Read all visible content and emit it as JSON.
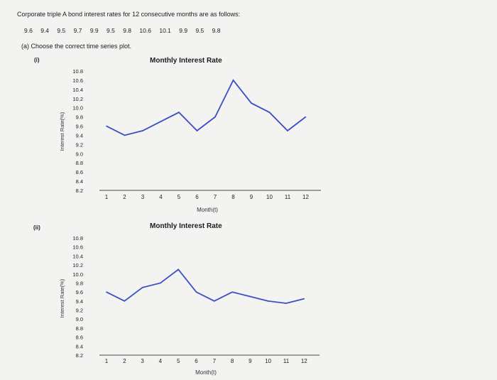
{
  "question": {
    "text": "Corporate triple A bond interest rates for 12 consecutive months are as follows:",
    "values": [
      "9.6",
      "9.4",
      "9.5",
      "9.7",
      "9.9",
      "9.5",
      "9.8",
      "10.6",
      "10.1",
      "9.9",
      "9.5",
      "9.8"
    ],
    "part": "(a) Choose the correct time series plot."
  },
  "options": [
    "(i)",
    "(ii)"
  ],
  "chart_data": [
    {
      "type": "line",
      "title": "Monthly Interest Rate",
      "xlabel": "Month(t)",
      "ylabel": "Interest Rate(%)",
      "categories": [
        "1",
        "2",
        "3",
        "4",
        "5",
        "6",
        "7",
        "8",
        "9",
        "10",
        "11",
        "12"
      ],
      "yticks": [
        "10.8",
        "10.6",
        "10.4",
        "10.2",
        "10.0",
        "9.8",
        "9.6",
        "9.4",
        "9.2",
        "9.0",
        "8.8",
        "8.6",
        "8.4",
        "8.2"
      ],
      "ylim": [
        8.2,
        10.8
      ],
      "values": [
        9.6,
        9.4,
        9.5,
        9.7,
        9.9,
        9.5,
        9.8,
        10.6,
        10.1,
        9.9,
        9.5,
        9.8
      ],
      "color": "#3b4fc4"
    },
    {
      "type": "line",
      "title": "Monthly Interest Rate",
      "xlabel": "Month(t)",
      "ylabel": "Interest Rate(%)",
      "categories": [
        "1",
        "2",
        "3",
        "4",
        "5",
        "6",
        "7",
        "8",
        "9",
        "10",
        "11",
        "12"
      ],
      "yticks": [
        "10.8",
        "10.6",
        "10.4",
        "10.2",
        "10.0",
        "9.8",
        "9.6",
        "9.4",
        "9.2",
        "9.0",
        "8.8",
        "8.6",
        "8.4",
        "8.2"
      ],
      "ylim": [
        8.2,
        10.8
      ],
      "values": [
        9.6,
        9.4,
        9.7,
        9.8,
        10.1,
        9.6,
        9.4,
        9.6,
        9.5,
        9.4,
        9.35,
        9.45
      ],
      "color": "#3b4fc4"
    }
  ]
}
